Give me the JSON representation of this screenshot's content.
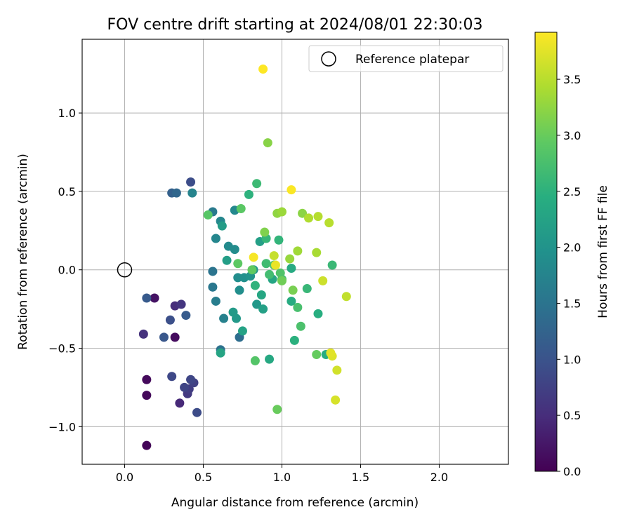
{
  "chart_data": {
    "type": "scatter",
    "title": "FOV centre drift starting at 2024/08/01 22:30:03",
    "xlabel": "Angular distance from reference (arcmin)",
    "ylabel": "Rotation from reference (arcmin)",
    "xlim": [
      -0.27,
      2.44
    ],
    "ylim": [
      -1.24,
      1.47
    ],
    "xticks": [
      0.0,
      0.5,
      1.0,
      1.5,
      2.0
    ],
    "yticks": [
      -1.0,
      -0.5,
      0.0,
      0.5,
      1.0
    ],
    "xtick_labels": [
      "0.0",
      "0.5",
      "1.0",
      "1.5",
      "2.0"
    ],
    "ytick_labels": [
      "−1.0",
      "−0.5",
      "0.0",
      "0.5",
      "1.0"
    ],
    "grid": true,
    "legend": {
      "position": "top-right",
      "label": "Reference platepar",
      "marker": "open-circle"
    },
    "reference_point": {
      "x": 0.0,
      "y": 0.0,
      "label": "Reference platepar"
    },
    "colorbar": {
      "label": "Hours from first FF file",
      "colormap": "viridis",
      "range": [
        0.0,
        3.92
      ],
      "ticks": [
        0.0,
        0.5,
        1.0,
        1.5,
        2.0,
        2.5,
        3.0,
        3.5
      ],
      "tick_labels": [
        "0.0",
        "0.5",
        "1.0",
        "1.5",
        "2.0",
        "2.5",
        "3.0",
        "3.5"
      ]
    },
    "points": [
      {
        "x": 0.14,
        "y": -1.12,
        "t": 0.05
      },
      {
        "x": 0.14,
        "y": -0.8,
        "t": 0.08
      },
      {
        "x": 0.14,
        "y": -0.7,
        "t": 0.1
      },
      {
        "x": 0.32,
        "y": -0.43,
        "t": 0.12
      },
      {
        "x": 0.19,
        "y": -0.18,
        "t": 0.2
      },
      {
        "x": 0.35,
        "y": -0.85,
        "t": 0.45
      },
      {
        "x": 0.32,
        "y": -0.23,
        "t": 0.5
      },
      {
        "x": 0.12,
        "y": -0.41,
        "t": 0.55
      },
      {
        "x": 0.36,
        "y": -0.22,
        "t": 0.6
      },
      {
        "x": 0.4,
        "y": -0.79,
        "t": 0.65
      },
      {
        "x": 0.41,
        "y": -0.76,
        "t": 0.7
      },
      {
        "x": 0.44,
        "y": -0.72,
        "t": 0.75
      },
      {
        "x": 0.38,
        "y": -0.75,
        "t": 0.8
      },
      {
        "x": 0.42,
        "y": -0.7,
        "t": 0.82
      },
      {
        "x": 0.3,
        "y": -0.68,
        "t": 0.85
      },
      {
        "x": 0.46,
        "y": -0.91,
        "t": 0.9
      },
      {
        "x": 0.42,
        "y": 0.56,
        "t": 0.92
      },
      {
        "x": 0.29,
        "y": -0.32,
        "t": 0.95
      },
      {
        "x": 0.25,
        "y": -0.43,
        "t": 1.05
      },
      {
        "x": 0.14,
        "y": -0.18,
        "t": 1.1
      },
      {
        "x": 0.39,
        "y": -0.29,
        "t": 1.12
      },
      {
        "x": 0.3,
        "y": 0.49,
        "t": 1.2
      },
      {
        "x": 0.33,
        "y": 0.49,
        "t": 1.3
      },
      {
        "x": 0.73,
        "y": -0.43,
        "t": 1.4
      },
      {
        "x": 0.61,
        "y": -0.51,
        "t": 1.45
      },
      {
        "x": 0.56,
        "y": -0.01,
        "t": 1.5
      },
      {
        "x": 0.56,
        "y": -0.11,
        "t": 1.55
      },
      {
        "x": 0.56,
        "y": 0.37,
        "t": 1.6
      },
      {
        "x": 0.58,
        "y": -0.2,
        "t": 1.65
      },
      {
        "x": 0.63,
        "y": -0.31,
        "t": 1.7
      },
      {
        "x": 0.43,
        "y": 0.49,
        "t": 1.75
      },
      {
        "x": 0.58,
        "y": 0.2,
        "t": 1.78
      },
      {
        "x": 0.61,
        "y": 0.31,
        "t": 1.8
      },
      {
        "x": 0.7,
        "y": 0.38,
        "t": 1.82
      },
      {
        "x": 0.66,
        "y": 0.15,
        "t": 1.85
      },
      {
        "x": 0.7,
        "y": 0.13,
        "t": 1.88
      },
      {
        "x": 0.72,
        "y": -0.05,
        "t": 1.9
      },
      {
        "x": 0.73,
        "y": -0.13,
        "t": 1.92
      },
      {
        "x": 0.76,
        "y": -0.05,
        "t": 1.95
      },
      {
        "x": 0.8,
        "y": -0.04,
        "t": 2.0
      },
      {
        "x": 0.82,
        "y": 0.0,
        "t": 2.05
      },
      {
        "x": 0.84,
        "y": -0.22,
        "t": 2.08
      },
      {
        "x": 0.71,
        "y": -0.31,
        "t": 2.1
      },
      {
        "x": 0.69,
        "y": -0.27,
        "t": 2.12
      },
      {
        "x": 0.62,
        "y": 0.28,
        "t": 2.15
      },
      {
        "x": 0.65,
        "y": 0.06,
        "t": 2.18
      },
      {
        "x": 0.86,
        "y": 0.18,
        "t": 2.2
      },
      {
        "x": 0.88,
        "y": -0.25,
        "t": 2.22
      },
      {
        "x": 0.75,
        "y": -0.39,
        "t": 2.25
      },
      {
        "x": 0.61,
        "y": -0.53,
        "t": 2.28
      },
      {
        "x": 0.94,
        "y": -0.06,
        "t": 2.3
      },
      {
        "x": 0.87,
        "y": -0.16,
        "t": 2.32
      },
      {
        "x": 0.92,
        "y": -0.57,
        "t": 2.35
      },
      {
        "x": 1.06,
        "y": 0.01,
        "t": 2.38
      },
      {
        "x": 1.06,
        "y": -0.2,
        "t": 2.4
      },
      {
        "x": 1.28,
        "y": -0.54,
        "t": 2.42
      },
      {
        "x": 1.23,
        "y": -0.28,
        "t": 2.45
      },
      {
        "x": 1.08,
        "y": -0.45,
        "t": 2.48
      },
      {
        "x": 0.79,
        "y": 0.48,
        "t": 2.5
      },
      {
        "x": 0.83,
        "y": -0.1,
        "t": 2.52
      },
      {
        "x": 0.98,
        "y": 0.19,
        "t": 2.55
      },
      {
        "x": 0.9,
        "y": 0.2,
        "t": 2.58
      },
      {
        "x": 1.16,
        "y": -0.12,
        "t": 2.6
      },
      {
        "x": 1.32,
        "y": 0.03,
        "t": 2.62
      },
      {
        "x": 0.84,
        "y": 0.55,
        "t": 2.65
      },
      {
        "x": 0.9,
        "y": 0.04,
        "t": 2.68
      },
      {
        "x": 0.92,
        "y": -0.03,
        "t": 2.7
      },
      {
        "x": 1.0,
        "y": -0.06,
        "t": 2.72
      },
      {
        "x": 1.1,
        "y": -0.24,
        "t": 2.75
      },
      {
        "x": 1.12,
        "y": -0.36,
        "t": 2.78
      },
      {
        "x": 0.95,
        "y": 0.03,
        "t": 2.8
      },
      {
        "x": 0.99,
        "y": -0.02,
        "t": 2.82
      },
      {
        "x": 0.83,
        "y": -0.58,
        "t": 2.85
      },
      {
        "x": 0.53,
        "y": 0.35,
        "t": 2.88
      },
      {
        "x": 0.74,
        "y": 0.39,
        "t": 2.9
      },
      {
        "x": 0.72,
        "y": 0.04,
        "t": 2.92
      },
      {
        "x": 0.81,
        "y": 0.0,
        "t": 2.95
      },
      {
        "x": 1.22,
        "y": -0.54,
        "t": 2.98
      },
      {
        "x": 0.97,
        "y": -0.89,
        "t": 3.0
      },
      {
        "x": 1.0,
        "y": -0.07,
        "t": 3.05
      },
      {
        "x": 1.07,
        "y": -0.13,
        "t": 3.1
      },
      {
        "x": 0.89,
        "y": 0.24,
        "t": 3.15
      },
      {
        "x": 0.91,
        "y": 0.81,
        "t": 3.2
      },
      {
        "x": 1.13,
        "y": 0.36,
        "t": 3.22
      },
      {
        "x": 0.97,
        "y": 0.36,
        "t": 3.25
      },
      {
        "x": 1.05,
        "y": 0.07,
        "t": 3.3
      },
      {
        "x": 1.0,
        "y": 0.37,
        "t": 3.32
      },
      {
        "x": 1.1,
        "y": 0.12,
        "t": 3.35
      },
      {
        "x": 1.22,
        "y": 0.11,
        "t": 3.4
      },
      {
        "x": 1.17,
        "y": 0.33,
        "t": 3.45
      },
      {
        "x": 1.23,
        "y": 0.34,
        "t": 3.48
      },
      {
        "x": 1.3,
        "y": 0.3,
        "t": 3.5
      },
      {
        "x": 1.41,
        "y": -0.17,
        "t": 3.55
      },
      {
        "x": 0.95,
        "y": 0.09,
        "t": 3.58
      },
      {
        "x": 1.26,
        "y": -0.07,
        "t": 3.62
      },
      {
        "x": 1.35,
        "y": -0.64,
        "t": 3.65
      },
      {
        "x": 1.34,
        "y": -0.83,
        "t": 3.68
      },
      {
        "x": 1.32,
        "y": -0.55,
        "t": 3.72
      },
      {
        "x": 1.31,
        "y": -0.53,
        "t": 3.75
      },
      {
        "x": 0.96,
        "y": 0.03,
        "t": 3.8
      },
      {
        "x": 0.82,
        "y": 0.08,
        "t": 3.88
      },
      {
        "x": 1.06,
        "y": 0.51,
        "t": 3.9
      },
      {
        "x": 0.88,
        "y": 1.28,
        "t": 3.92
      }
    ]
  }
}
